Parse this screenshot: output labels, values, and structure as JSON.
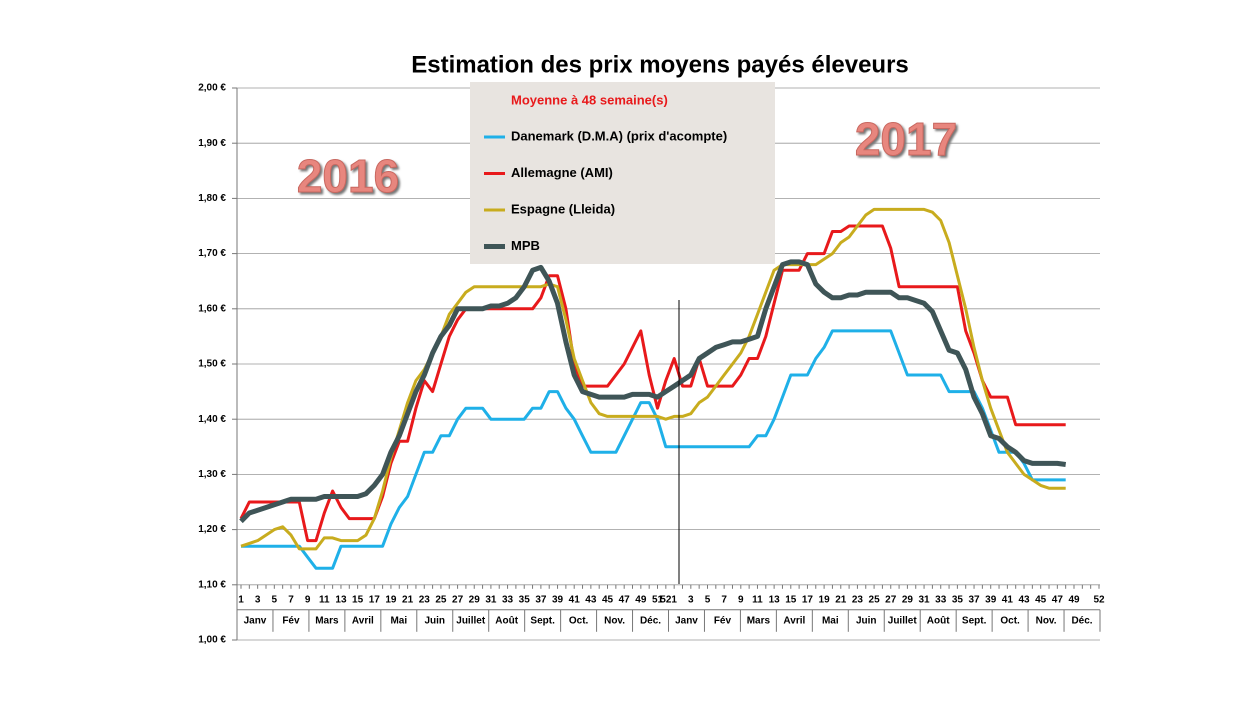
{
  "chart_data": {
    "type": "line",
    "title": "Estimation des prix moyens payés éleveurs",
    "legend_title": "Moyenne à  48 semaine(s)",
    "annotations": [
      "2016",
      "2017"
    ],
    "months": [
      "Janv",
      "Fév",
      "Mars",
      "Avril",
      "Mai",
      "Juin",
      "Juillet",
      "Août",
      "Sept.",
      "Oct.",
      "Nov.",
      "Déc.",
      "Janv",
      "Fév",
      "Mars",
      "Avril",
      "Mai",
      "Juin",
      "Juillet",
      "Août",
      "Sept.",
      "Oct.",
      "Nov.",
      "Déc."
    ],
    "categories": [
      "1",
      null,
      "3",
      null,
      "5",
      null,
      "7",
      null,
      "9",
      null,
      "11",
      null,
      "13",
      null,
      "15",
      null,
      "17",
      null,
      "19",
      null,
      "21",
      null,
      "23",
      null,
      "25",
      null,
      "27",
      null,
      "29",
      null,
      "31",
      null,
      "33",
      null,
      "35",
      null,
      "37",
      null,
      "39",
      null,
      "41",
      null,
      "43",
      null,
      "45",
      null,
      "47",
      null,
      "49",
      null,
      "51",
      "52",
      "1",
      null,
      "3",
      null,
      "5",
      null,
      "7",
      null,
      "9",
      null,
      "11",
      null,
      "13",
      null,
      "15",
      null,
      "17",
      null,
      "19",
      null,
      "21",
      null,
      "23",
      null,
      "25",
      null,
      "27",
      null,
      "29",
      null,
      "31",
      null,
      "33",
      null,
      "35",
      null,
      "37",
      null,
      "39",
      null,
      "41",
      null,
      "43",
      null,
      "45",
      null,
      "47",
      null,
      "49",
      null,
      null,
      "52"
    ],
    "ylim": [
      1.0,
      2.0
    ],
    "yticks": [
      {
        "value": 1.0,
        "label": "1,00 €"
      },
      {
        "value": 1.1,
        "label": "1,10 €"
      },
      {
        "value": 1.2,
        "label": "1,20 €"
      },
      {
        "value": 1.3,
        "label": "1,30 €"
      },
      {
        "value": 1.4,
        "label": "1,40 €"
      },
      {
        "value": 1.5,
        "label": "1,50 €"
      },
      {
        "value": 1.6,
        "label": "1,60 €"
      },
      {
        "value": 1.7,
        "label": "1,70 €"
      },
      {
        "value": 1.8,
        "label": "1,80 €"
      },
      {
        "value": 1.9,
        "label": "1,90 €"
      },
      {
        "value": 2.0,
        "label": "2,00 €"
      }
    ],
    "grid": true,
    "series": [
      {
        "name": "Danemark (D.M.A) (prix d'acompte)",
        "color": "#1fb0e8",
        "width": 3,
        "values": [
          1.17,
          1.17,
          1.17,
          1.17,
          1.17,
          1.17,
          1.17,
          1.17,
          1.15,
          1.13,
          1.13,
          1.13,
          1.17,
          1.17,
          1.17,
          1.17,
          1.17,
          1.17,
          1.21,
          1.24,
          1.26,
          1.3,
          1.34,
          1.34,
          1.37,
          1.37,
          1.4,
          1.42,
          1.42,
          1.42,
          1.4,
          1.4,
          1.4,
          1.4,
          1.4,
          1.42,
          1.42,
          1.45,
          1.45,
          1.42,
          1.4,
          1.37,
          1.34,
          1.34,
          1.34,
          1.34,
          1.37,
          1.4,
          1.43,
          1.43,
          1.4,
          1.35,
          1.35,
          1.35,
          1.35,
          1.35,
          1.35,
          1.35,
          1.35,
          1.35,
          1.35,
          1.35,
          1.37,
          1.37,
          1.4,
          1.44,
          1.48,
          1.48,
          1.48,
          1.51,
          1.53,
          1.56,
          1.56,
          1.56,
          1.56,
          1.56,
          1.56,
          1.56,
          1.56,
          1.52,
          1.48,
          1.48,
          1.48,
          1.48,
          1.48,
          1.45,
          1.45,
          1.45,
          1.45,
          1.42,
          1.38,
          1.34,
          1.34,
          1.34,
          1.32,
          1.29,
          1.29,
          1.29,
          1.29,
          1.29,
          null,
          null,
          null,
          null
        ]
      },
      {
        "name": "Allemagne (AMI)",
        "color": "#e8191b",
        "width": 3,
        "values": [
          1.22,
          1.25,
          1.25,
          1.25,
          1.25,
          1.25,
          1.25,
          1.25,
          1.18,
          1.18,
          1.23,
          1.27,
          1.24,
          1.22,
          1.22,
          1.22,
          1.22,
          1.26,
          1.32,
          1.36,
          1.36,
          1.42,
          1.47,
          1.45,
          1.5,
          1.55,
          1.58,
          1.6,
          1.6,
          1.6,
          1.6,
          1.6,
          1.6,
          1.6,
          1.6,
          1.6,
          1.62,
          1.66,
          1.66,
          1.6,
          1.5,
          1.46,
          1.46,
          1.46,
          1.46,
          1.48,
          1.5,
          1.53,
          1.56,
          1.48,
          1.42,
          1.47,
          1.51,
          1.46,
          1.46,
          1.51,
          1.46,
          1.46,
          1.46,
          1.46,
          1.48,
          1.51,
          1.51,
          1.55,
          1.61,
          1.67,
          1.67,
          1.67,
          1.7,
          1.7,
          1.7,
          1.74,
          1.74,
          1.75,
          1.75,
          1.75,
          1.75,
          1.75,
          1.71,
          1.64,
          1.64,
          1.64,
          1.64,
          1.64,
          1.64,
          1.64,
          1.64,
          1.56,
          1.52,
          1.47,
          1.44,
          1.44,
          1.44,
          1.39,
          1.39,
          1.39,
          1.39,
          1.39,
          1.39,
          1.39,
          null,
          null,
          null,
          null
        ]
      },
      {
        "name": "Espagne (Lleida)",
        "color": "#c8ac1e",
        "width": 3,
        "values": [
          1.17,
          1.175,
          1.18,
          1.19,
          1.2,
          1.205,
          1.19,
          1.165,
          1.165,
          1.165,
          1.185,
          1.185,
          1.18,
          1.18,
          1.18,
          1.19,
          1.22,
          1.27,
          1.33,
          1.38,
          1.43,
          1.47,
          1.49,
          1.52,
          1.55,
          1.59,
          1.61,
          1.63,
          1.64,
          1.64,
          1.64,
          1.64,
          1.64,
          1.64,
          1.64,
          1.64,
          1.64,
          1.645,
          1.64,
          1.58,
          1.51,
          1.47,
          1.43,
          1.41,
          1.405,
          1.405,
          1.405,
          1.405,
          1.405,
          1.405,
          1.405,
          1.4,
          1.405,
          1.405,
          1.41,
          1.43,
          1.44,
          1.46,
          1.48,
          1.5,
          1.52,
          1.55,
          1.59,
          1.63,
          1.67,
          1.68,
          1.68,
          1.68,
          1.68,
          1.68,
          1.69,
          1.7,
          1.72,
          1.73,
          1.75,
          1.77,
          1.78,
          1.78,
          1.78,
          1.78,
          1.78,
          1.78,
          1.78,
          1.775,
          1.76,
          1.72,
          1.66,
          1.6,
          1.53,
          1.47,
          1.42,
          1.38,
          1.34,
          1.32,
          1.3,
          1.29,
          1.28,
          1.275,
          1.275,
          1.275,
          null,
          null,
          null,
          null
        ]
      },
      {
        "name": "MPB",
        "color": "#3f5557",
        "width": 5,
        "values": [
          1.215,
          1.23,
          1.235,
          1.24,
          1.245,
          1.25,
          1.255,
          1.255,
          1.255,
          1.255,
          1.26,
          1.26,
          1.26,
          1.26,
          1.26,
          1.265,
          1.28,
          1.3,
          1.34,
          1.37,
          1.41,
          1.45,
          1.48,
          1.52,
          1.55,
          1.57,
          1.6,
          1.6,
          1.6,
          1.6,
          1.605,
          1.605,
          1.61,
          1.62,
          1.64,
          1.67,
          1.675,
          1.65,
          1.61,
          1.54,
          1.48,
          1.45,
          1.445,
          1.44,
          1.44,
          1.44,
          1.44,
          1.445,
          1.445,
          1.445,
          1.44,
          1.45,
          1.46,
          1.47,
          1.48,
          1.51,
          1.52,
          1.53,
          1.535,
          1.54,
          1.54,
          1.545,
          1.55,
          1.6,
          1.64,
          1.68,
          1.685,
          1.685,
          1.68,
          1.645,
          1.63,
          1.62,
          1.62,
          1.625,
          1.625,
          1.63,
          1.63,
          1.63,
          1.63,
          1.62,
          1.62,
          1.615,
          1.61,
          1.595,
          1.56,
          1.525,
          1.52,
          1.49,
          1.44,
          1.41,
          1.37,
          1.365,
          1.35,
          1.34,
          1.325,
          1.32,
          1.32,
          1.32,
          1.32,
          1.318,
          null,
          null,
          null,
          null
        ]
      }
    ]
  }
}
